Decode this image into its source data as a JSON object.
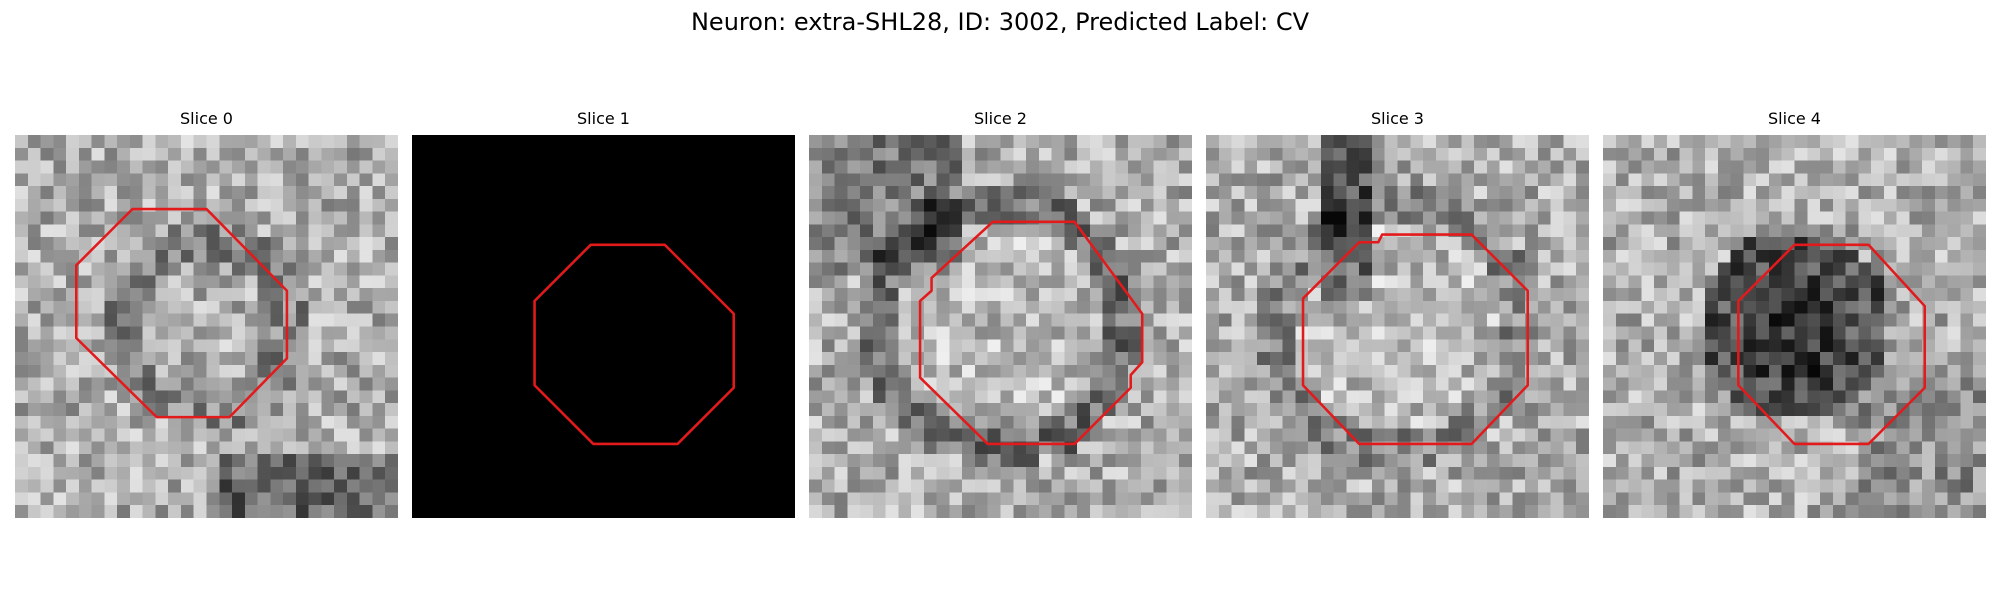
{
  "figure": {
    "title": "Neuron: extra-SHL28, ID: 3002, Predicted Label: CV"
  },
  "panels": [
    {
      "label": "Slice 0"
    },
    {
      "label": "Slice 1"
    },
    {
      "label": "Slice 2"
    },
    {
      "label": "Slice 3"
    },
    {
      "label": "Slice 4"
    }
  ],
  "colors": {
    "outline": "#e31a1c",
    "background": "#ffffff",
    "blank_slice": "#000000"
  },
  "icons": []
}
